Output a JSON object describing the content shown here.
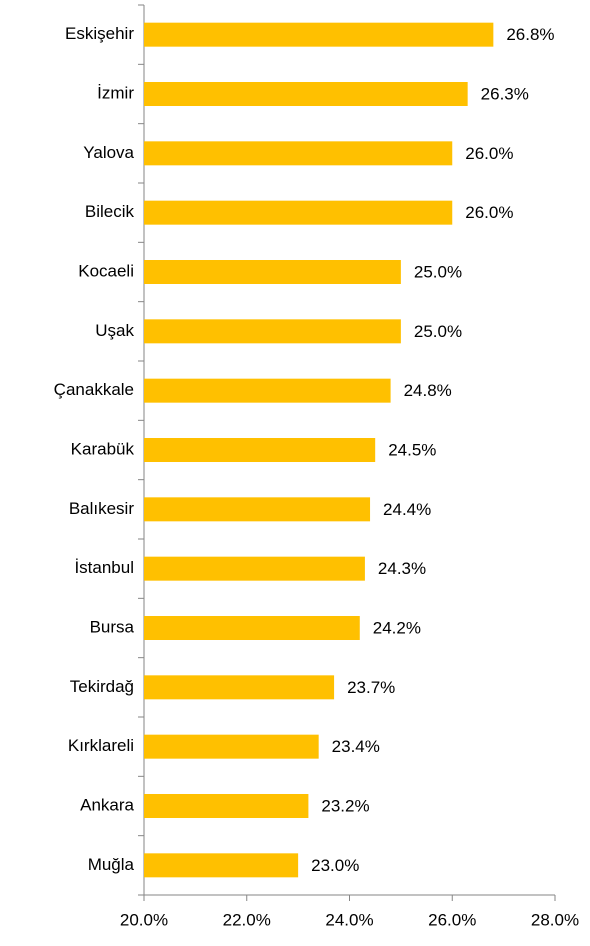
{
  "chart_data": {
    "type": "bar",
    "orientation": "horizontal",
    "categories": [
      "Eskişehir",
      "İzmir",
      "Yalova",
      "Bilecik",
      "Kocaeli",
      "Uşak",
      "Çanakkale",
      "Karabük",
      "Balıkesir",
      "İstanbul",
      "Bursa",
      "Tekirdağ",
      "Kırklareli",
      "Ankara",
      "Muğla"
    ],
    "values": [
      26.8,
      26.3,
      26.0,
      26.0,
      25.0,
      25.0,
      24.8,
      24.5,
      24.4,
      24.3,
      24.2,
      23.7,
      23.4,
      23.2,
      23.0
    ],
    "value_labels": [
      "26.8%",
      "26.3%",
      "26.0%",
      "26.0%",
      "25.0%",
      "25.0%",
      "24.8%",
      "24.5%",
      "24.4%",
      "24.3%",
      "24.2%",
      "23.7%",
      "23.4%",
      "23.2%",
      "23.0%"
    ],
    "color": "#ffc000",
    "xlim": [
      20,
      28
    ],
    "xticks": [
      {
        "value": 20,
        "label": "20.0%"
      },
      {
        "value": 22,
        "label": "22.0%"
      },
      {
        "value": 24,
        "label": "24.0%"
      },
      {
        "value": 26,
        "label": "26.0%"
      },
      {
        "value": 28,
        "label": "28.0%"
      }
    ],
    "grid": false
  }
}
